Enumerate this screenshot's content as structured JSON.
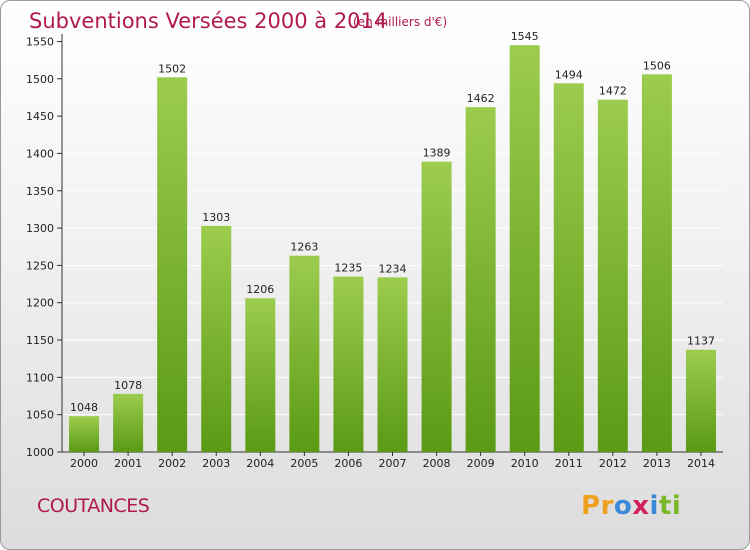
{
  "chart_data": {
    "type": "bar",
    "title": "Subventions Versées 2000 à 2014",
    "subtitle": "(en milliers d'€)",
    "categories": [
      "2000",
      "2001",
      "2002",
      "2003",
      "2004",
      "2005",
      "2006",
      "2007",
      "2008",
      "2009",
      "2010",
      "2011",
      "2012",
      "2013",
      "2014"
    ],
    "values": [
      1048,
      1078,
      1502,
      1303,
      1206,
      1263,
      1235,
      1234,
      1389,
      1462,
      1545,
      1494,
      1472,
      1506,
      1137
    ],
    "ylim": [
      1000,
      1560
    ],
    "yticks": [
      1000,
      1050,
      1100,
      1150,
      1200,
      1250,
      1300,
      1350,
      1400,
      1450,
      1500,
      1550
    ],
    "grid": true,
    "bar_color_top": "#9ccc4e",
    "bar_color_bottom": "#5a9a14"
  },
  "footer": {
    "city": "COUTANCES",
    "logo_letters": [
      "P",
      "r",
      "o",
      "x",
      "i",
      "t",
      "i"
    ],
    "logo_colors": [
      "#f0a020",
      "#f0a020",
      "#3a8ad8",
      "#d02060",
      "#3a8ad8",
      "#7ab828",
      "#7ab828"
    ]
  }
}
